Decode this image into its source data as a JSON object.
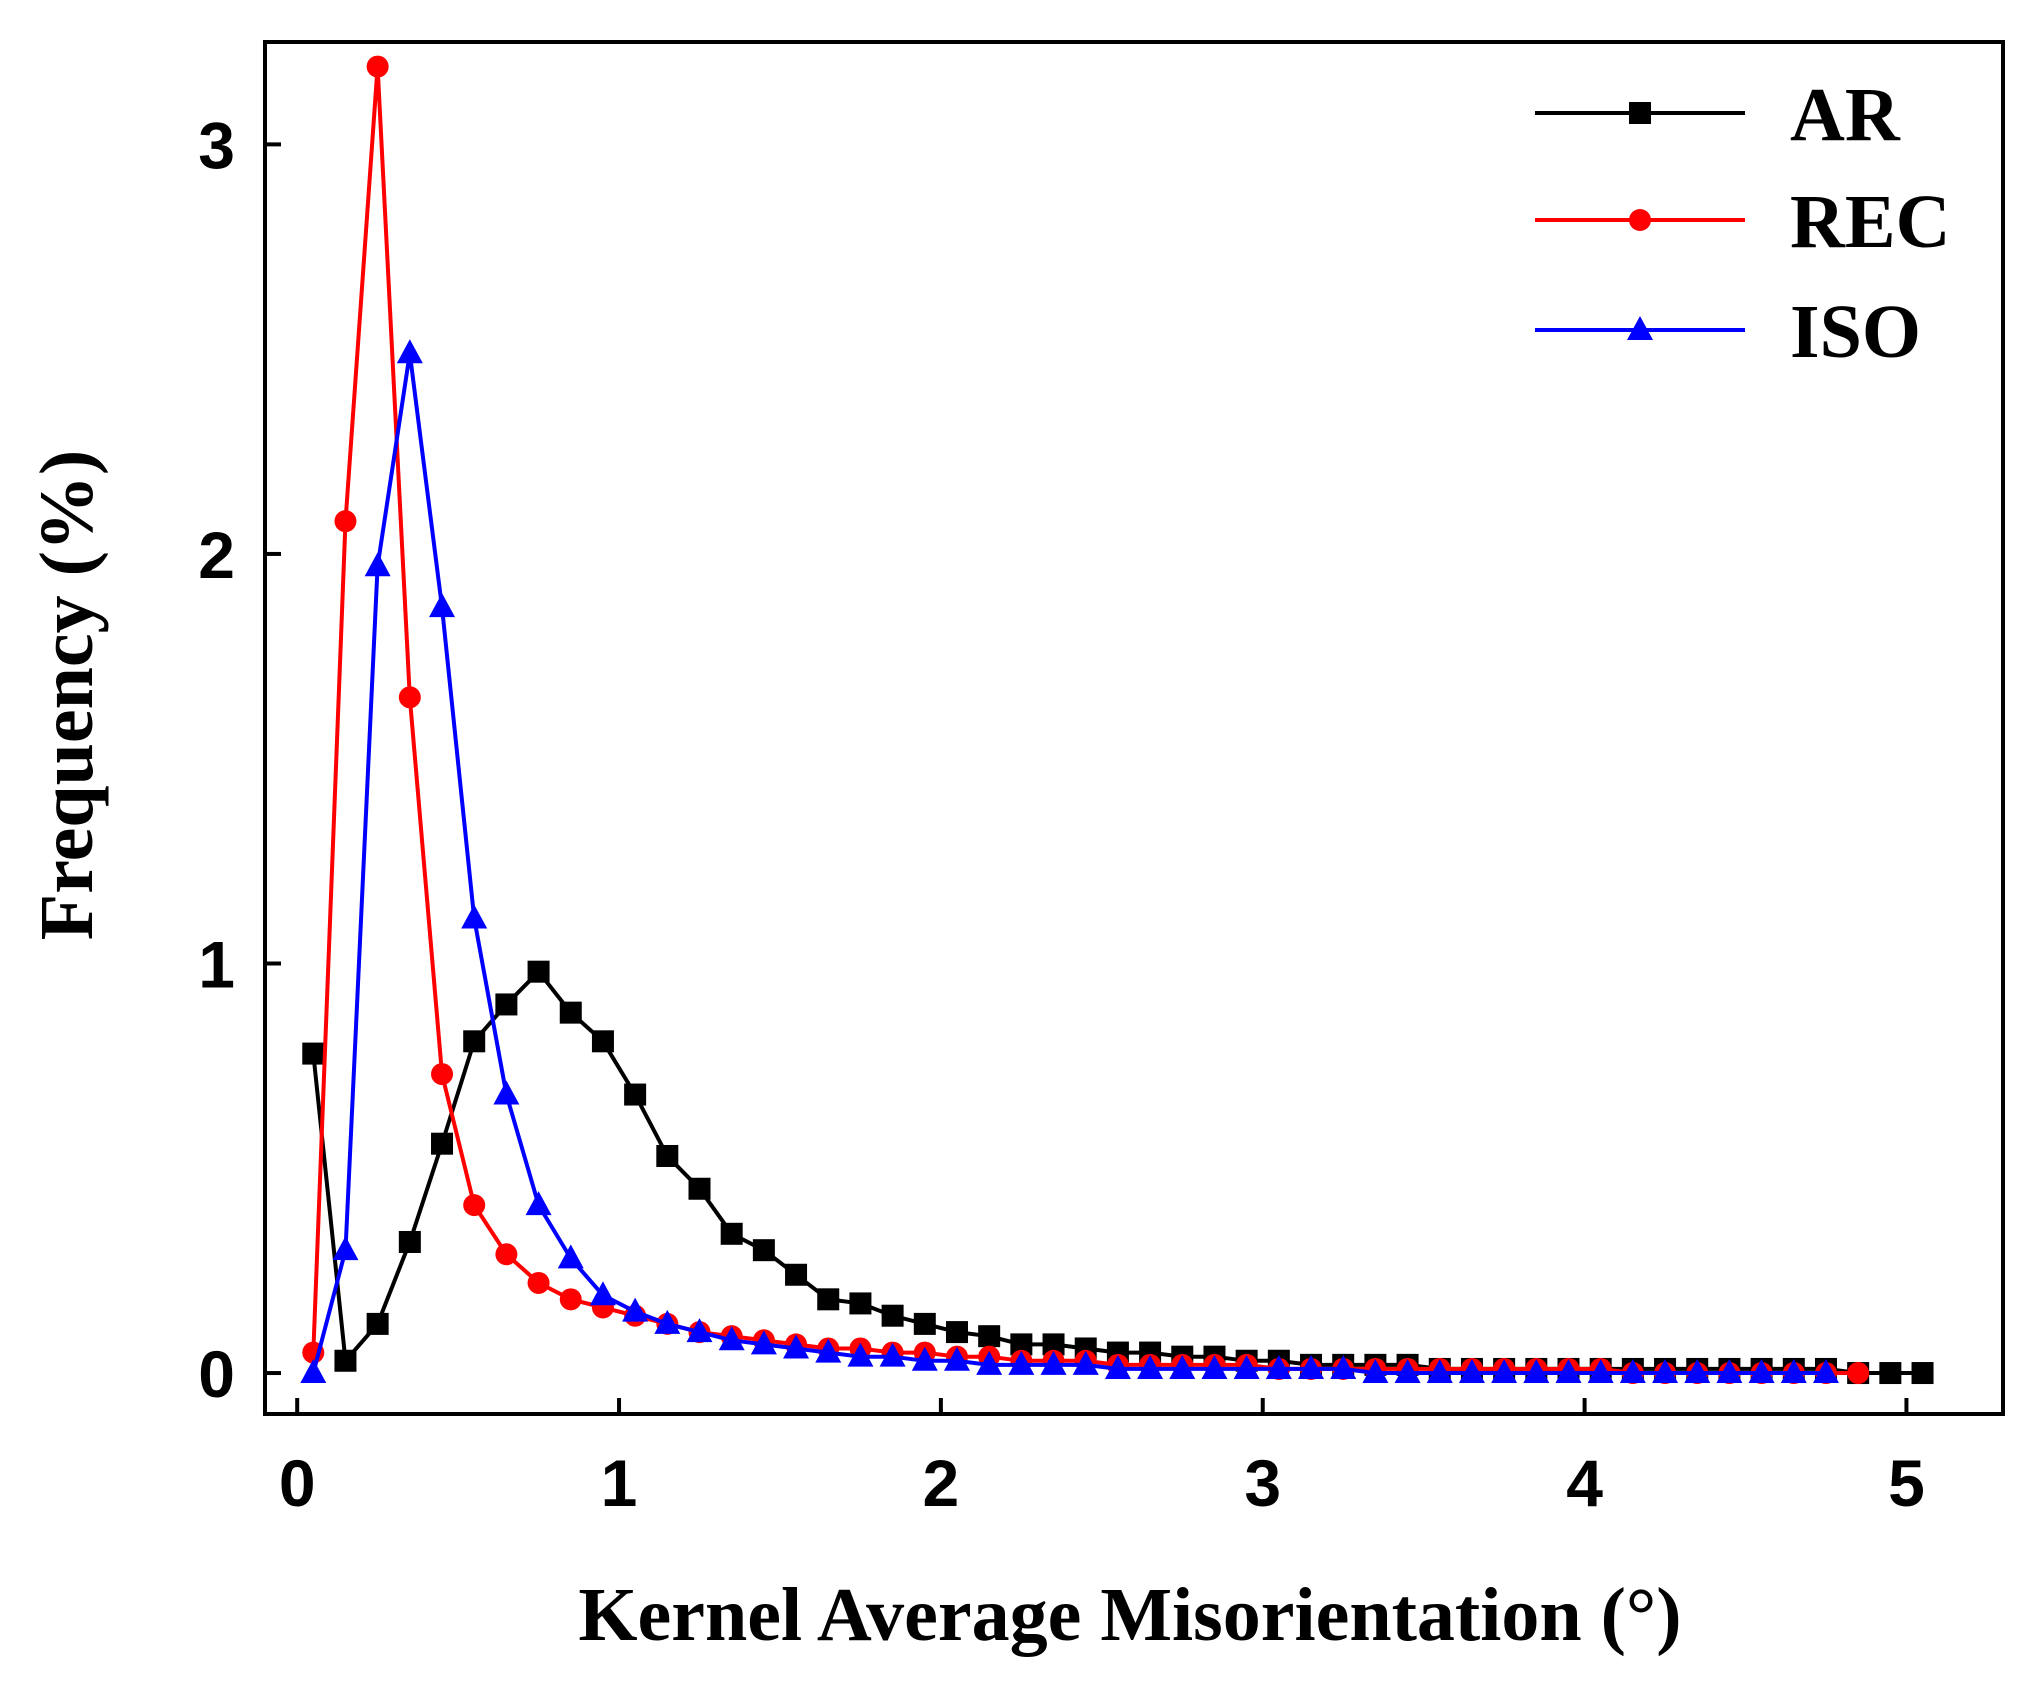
{
  "chart_data": {
    "type": "line",
    "title": "",
    "xlabel": "Kernel Average Misorientation (°)",
    "ylabel": "Frequency (%)",
    "xlim": [
      -0.1,
      5.3
    ],
    "ylim": [
      -0.1,
      3.25
    ],
    "xticks": [
      0,
      1,
      2,
      3,
      4,
      5
    ],
    "yticks": [
      0,
      1,
      2,
      3
    ],
    "grid": false,
    "legend_position": "top-right",
    "series": [
      {
        "name": "AR",
        "color": "#000000",
        "marker": "square",
        "x": [
          0.05,
          0.15,
          0.25,
          0.35,
          0.45,
          0.55,
          0.65,
          0.75,
          0.85,
          0.95,
          1.05,
          1.15,
          1.25,
          1.35,
          1.45,
          1.55,
          1.65,
          1.75,
          1.85,
          1.95,
          2.05,
          2.15,
          2.25,
          2.35,
          2.45,
          2.55,
          2.65,
          2.75,
          2.85,
          2.95,
          3.05,
          3.15,
          3.25,
          3.35,
          3.45,
          3.55,
          3.65,
          3.75,
          3.85,
          3.95,
          4.05,
          4.15,
          4.25,
          4.35,
          4.45,
          4.55,
          4.65,
          4.75,
          4.85,
          4.95,
          5.05
        ],
        "y": [
          0.78,
          0.03,
          0.12,
          0.32,
          0.56,
          0.81,
          0.9,
          0.98,
          0.88,
          0.81,
          0.68,
          0.53,
          0.45,
          0.34,
          0.3,
          0.24,
          0.18,
          0.17,
          0.14,
          0.12,
          0.1,
          0.09,
          0.07,
          0.07,
          0.06,
          0.05,
          0.05,
          0.04,
          0.04,
          0.03,
          0.03,
          0.02,
          0.02,
          0.02,
          0.02,
          0.01,
          0.01,
          0.01,
          0.01,
          0.01,
          0.01,
          0.01,
          0.01,
          0.01,
          0.01,
          0.01,
          0.01,
          0.01,
          0.0,
          0.0,
          0.0
        ]
      },
      {
        "name": "REC",
        "color": "#ff0000",
        "marker": "circle",
        "x": [
          0.05,
          0.15,
          0.25,
          0.35,
          0.45,
          0.55,
          0.65,
          0.75,
          0.85,
          0.95,
          1.05,
          1.15,
          1.25,
          1.35,
          1.45,
          1.55,
          1.65,
          1.75,
          1.85,
          1.95,
          2.05,
          2.15,
          2.25,
          2.35,
          2.45,
          2.55,
          2.65,
          2.75,
          2.85,
          2.95,
          3.05,
          3.15,
          3.25,
          3.35,
          3.45,
          3.55,
          3.65,
          3.75,
          3.85,
          3.95,
          4.05,
          4.15,
          4.25,
          4.35,
          4.45,
          4.55,
          4.65,
          4.75,
          4.85
        ],
        "y": [
          0.05,
          2.08,
          3.19,
          1.65,
          0.73,
          0.41,
          0.29,
          0.22,
          0.18,
          0.16,
          0.14,
          0.12,
          0.1,
          0.09,
          0.08,
          0.07,
          0.06,
          0.06,
          0.05,
          0.05,
          0.04,
          0.04,
          0.03,
          0.03,
          0.03,
          0.02,
          0.02,
          0.02,
          0.02,
          0.02,
          0.01,
          0.01,
          0.01,
          0.01,
          0.01,
          0.01,
          0.01,
          0.01,
          0.01,
          0.01,
          0.01,
          0.0,
          0.0,
          0.0,
          0.0,
          0.0,
          0.0,
          0.0,
          0.0
        ]
      },
      {
        "name": "ISO",
        "color": "#0000ff",
        "marker": "triangle",
        "x": [
          0.05,
          0.15,
          0.25,
          0.35,
          0.45,
          0.55,
          0.65,
          0.75,
          0.85,
          0.95,
          1.05,
          1.15,
          1.25,
          1.35,
          1.45,
          1.55,
          1.65,
          1.75,
          1.85,
          1.95,
          2.05,
          2.15,
          2.25,
          2.35,
          2.45,
          2.55,
          2.65,
          2.75,
          2.85,
          2.95,
          3.05,
          3.15,
          3.25,
          3.35,
          3.45,
          3.55,
          3.65,
          3.75,
          3.85,
          3.95,
          4.05,
          4.15,
          4.25,
          4.35,
          4.45,
          4.55,
          4.65,
          4.75
        ],
        "y": [
          0.0,
          0.3,
          1.97,
          2.49,
          1.87,
          1.11,
          0.68,
          0.41,
          0.28,
          0.19,
          0.15,
          0.12,
          0.1,
          0.08,
          0.07,
          0.06,
          0.05,
          0.04,
          0.04,
          0.03,
          0.03,
          0.02,
          0.02,
          0.02,
          0.02,
          0.01,
          0.01,
          0.01,
          0.01,
          0.01,
          0.01,
          0.01,
          0.01,
          0.0,
          0.0,
          0.0,
          0.0,
          0.0,
          0.0,
          0.0,
          0.0,
          0.0,
          0.0,
          0.0,
          0.0,
          0.0,
          0.0,
          0.0
        ]
      }
    ]
  }
}
